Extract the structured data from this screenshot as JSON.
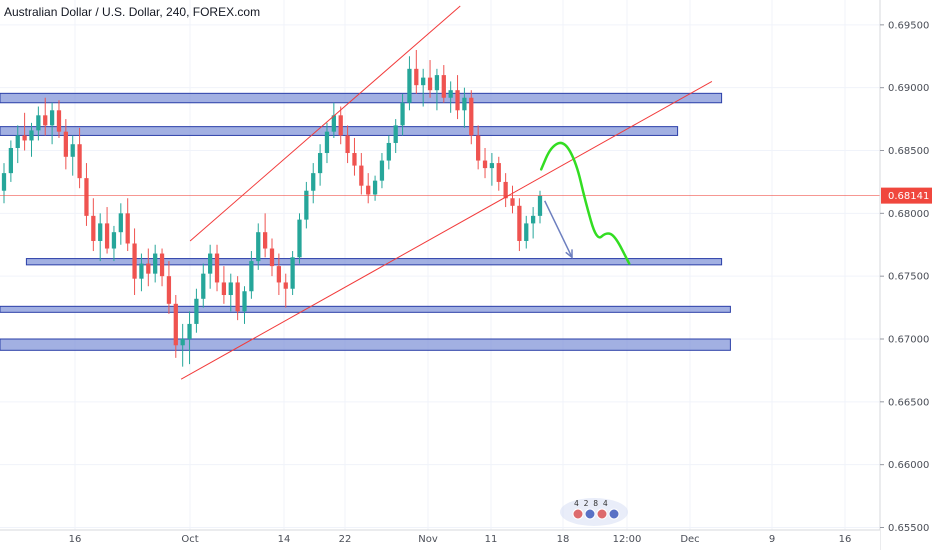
{
  "chart_data": {
    "type": "candlestick",
    "title": "Australian Dollar / U.S. Dollar, 240, FOREX.com",
    "symbol": "AUDUSD",
    "timeframe": "240",
    "source": "FOREX.com",
    "ylim": [
      0.6548,
      0.6965
    ],
    "y_ticks": [
      "0.69500",
      "0.69000",
      "0.68500",
      "0.68000",
      "0.67500",
      "0.67000",
      "0.66500",
      "0.66000",
      "0.65500"
    ],
    "x_ticks": [
      "16",
      "Oct",
      "14",
      "22",
      "Nov",
      "11",
      "18",
      "12:00",
      "Dec",
      "9",
      "16"
    ],
    "current_price": "0.68141",
    "colors": {
      "up": "#26a69a",
      "down": "#ef5350",
      "zone_fill": "#7b8fd6",
      "zone_stroke": "#2b3fa8",
      "trendline": "#f23c3c",
      "forecast": "#33dd22",
      "arrow": "#6d7fbf",
      "price_tag": "#f0473d"
    },
    "candles": [
      {
        "o": 0.6818,
        "h": 0.684,
        "l": 0.6808,
        "c": 0.6832
      },
      {
        "o": 0.6832,
        "h": 0.6858,
        "l": 0.6825,
        "c": 0.6852
      },
      {
        "o": 0.6852,
        "h": 0.687,
        "l": 0.684,
        "c": 0.6862
      },
      {
        "o": 0.6862,
        "h": 0.688,
        "l": 0.685,
        "c": 0.6858
      },
      {
        "o": 0.6858,
        "h": 0.6872,
        "l": 0.6845,
        "c": 0.6866
      },
      {
        "o": 0.6866,
        "h": 0.6885,
        "l": 0.6858,
        "c": 0.6878
      },
      {
        "o": 0.6878,
        "h": 0.6892,
        "l": 0.6862,
        "c": 0.687
      },
      {
        "o": 0.687,
        "h": 0.6888,
        "l": 0.6855,
        "c": 0.6882
      },
      {
        "o": 0.6882,
        "h": 0.689,
        "l": 0.686,
        "c": 0.6865
      },
      {
        "o": 0.6865,
        "h": 0.6875,
        "l": 0.6835,
        "c": 0.6845
      },
      {
        "o": 0.6845,
        "h": 0.6862,
        "l": 0.683,
        "c": 0.6855
      },
      {
        "o": 0.6855,
        "h": 0.6868,
        "l": 0.682,
        "c": 0.6828
      },
      {
        "o": 0.6828,
        "h": 0.684,
        "l": 0.679,
        "c": 0.6798
      },
      {
        "o": 0.6798,
        "h": 0.6812,
        "l": 0.677,
        "c": 0.6778
      },
      {
        "o": 0.6778,
        "h": 0.68,
        "l": 0.6762,
        "c": 0.6792
      },
      {
        "o": 0.6792,
        "h": 0.6805,
        "l": 0.6768,
        "c": 0.6772
      },
      {
        "o": 0.6772,
        "h": 0.679,
        "l": 0.6762,
        "c": 0.6785
      },
      {
        "o": 0.6785,
        "h": 0.6808,
        "l": 0.6775,
        "c": 0.68
      },
      {
        "o": 0.68,
        "h": 0.6812,
        "l": 0.677,
        "c": 0.6776
      },
      {
        "o": 0.6776,
        "h": 0.6788,
        "l": 0.6735,
        "c": 0.6748
      },
      {
        "o": 0.6748,
        "h": 0.6768,
        "l": 0.6738,
        "c": 0.676
      },
      {
        "o": 0.676,
        "h": 0.6772,
        "l": 0.6742,
        "c": 0.6752
      },
      {
        "o": 0.6752,
        "h": 0.6775,
        "l": 0.6745,
        "c": 0.6768
      },
      {
        "o": 0.6768,
        "h": 0.6772,
        "l": 0.6742,
        "c": 0.675
      },
      {
        "o": 0.675,
        "h": 0.6762,
        "l": 0.672,
        "c": 0.6728
      },
      {
        "o": 0.6728,
        "h": 0.6735,
        "l": 0.6685,
        "c": 0.6695
      },
      {
        "o": 0.6695,
        "h": 0.6712,
        "l": 0.6678,
        "c": 0.67
      },
      {
        "o": 0.67,
        "h": 0.6722,
        "l": 0.668,
        "c": 0.6712
      },
      {
        "o": 0.6712,
        "h": 0.674,
        "l": 0.6705,
        "c": 0.6732
      },
      {
        "o": 0.6732,
        "h": 0.676,
        "l": 0.6725,
        "c": 0.6752
      },
      {
        "o": 0.6752,
        "h": 0.6775,
        "l": 0.674,
        "c": 0.6768
      },
      {
        "o": 0.6768,
        "h": 0.6775,
        "l": 0.6738,
        "c": 0.6745
      },
      {
        "o": 0.6745,
        "h": 0.6758,
        "l": 0.6728,
        "c": 0.6735
      },
      {
        "o": 0.6735,
        "h": 0.6752,
        "l": 0.6722,
        "c": 0.6745
      },
      {
        "o": 0.6745,
        "h": 0.675,
        "l": 0.6715,
        "c": 0.6722
      },
      {
        "o": 0.6722,
        "h": 0.6742,
        "l": 0.6712,
        "c": 0.6738
      },
      {
        "o": 0.6738,
        "h": 0.677,
        "l": 0.6732,
        "c": 0.6762
      },
      {
        "o": 0.6762,
        "h": 0.6792,
        "l": 0.6755,
        "c": 0.6785
      },
      {
        "o": 0.6785,
        "h": 0.68,
        "l": 0.6765,
        "c": 0.6772
      },
      {
        "o": 0.6772,
        "h": 0.678,
        "l": 0.675,
        "c": 0.6758
      },
      {
        "o": 0.6758,
        "h": 0.6768,
        "l": 0.6735,
        "c": 0.6745
      },
      {
        "o": 0.6745,
        "h": 0.6752,
        "l": 0.6725,
        "c": 0.674
      },
      {
        "o": 0.674,
        "h": 0.677,
        "l": 0.6735,
        "c": 0.6765
      },
      {
        "o": 0.6765,
        "h": 0.68,
        "l": 0.676,
        "c": 0.6795
      },
      {
        "o": 0.6795,
        "h": 0.6825,
        "l": 0.6788,
        "c": 0.6818
      },
      {
        "o": 0.6818,
        "h": 0.684,
        "l": 0.6808,
        "c": 0.6832
      },
      {
        "o": 0.6832,
        "h": 0.6855,
        "l": 0.6822,
        "c": 0.6848
      },
      {
        "o": 0.6848,
        "h": 0.6872,
        "l": 0.684,
        "c": 0.6865
      },
      {
        "o": 0.6865,
        "h": 0.6888,
        "l": 0.686,
        "c": 0.6878
      },
      {
        "o": 0.6878,
        "h": 0.6885,
        "l": 0.6855,
        "c": 0.6862
      },
      {
        "o": 0.6862,
        "h": 0.687,
        "l": 0.684,
        "c": 0.6848
      },
      {
        "o": 0.6848,
        "h": 0.686,
        "l": 0.683,
        "c": 0.6838
      },
      {
        "o": 0.6838,
        "h": 0.6848,
        "l": 0.6815,
        "c": 0.6822
      },
      {
        "o": 0.6822,
        "h": 0.6832,
        "l": 0.6808,
        "c": 0.6815
      },
      {
        "o": 0.6815,
        "h": 0.683,
        "l": 0.681,
        "c": 0.6826
      },
      {
        "o": 0.6826,
        "h": 0.6848,
        "l": 0.682,
        "c": 0.6842
      },
      {
        "o": 0.6842,
        "h": 0.6862,
        "l": 0.6835,
        "c": 0.6856
      },
      {
        "o": 0.6856,
        "h": 0.6875,
        "l": 0.6848,
        "c": 0.687
      },
      {
        "o": 0.687,
        "h": 0.6895,
        "l": 0.6862,
        "c": 0.6888
      },
      {
        "o": 0.6888,
        "h": 0.6925,
        "l": 0.6882,
        "c": 0.6915
      },
      {
        "o": 0.6915,
        "h": 0.693,
        "l": 0.6895,
        "c": 0.6902
      },
      {
        "o": 0.6902,
        "h": 0.6915,
        "l": 0.6885,
        "c": 0.6908
      },
      {
        "o": 0.6908,
        "h": 0.6922,
        "l": 0.6892,
        "c": 0.6898
      },
      {
        "o": 0.6898,
        "h": 0.6915,
        "l": 0.6882,
        "c": 0.691
      },
      {
        "o": 0.691,
        "h": 0.6918,
        "l": 0.6888,
        "c": 0.6892
      },
      {
        "o": 0.6892,
        "h": 0.6905,
        "l": 0.688,
        "c": 0.6898
      },
      {
        "o": 0.6898,
        "h": 0.691,
        "l": 0.6875,
        "c": 0.6882
      },
      {
        "o": 0.6882,
        "h": 0.69,
        "l": 0.6868,
        "c": 0.6892
      },
      {
        "o": 0.6892,
        "h": 0.6898,
        "l": 0.6855,
        "c": 0.6862
      },
      {
        "o": 0.6862,
        "h": 0.687,
        "l": 0.6835,
        "c": 0.6842
      },
      {
        "o": 0.6842,
        "h": 0.6852,
        "l": 0.6828,
        "c": 0.6836
      },
      {
        "o": 0.6836,
        "h": 0.6848,
        "l": 0.6822,
        "c": 0.684
      },
      {
        "o": 0.684,
        "h": 0.6845,
        "l": 0.6818,
        "c": 0.6825
      },
      {
        "o": 0.6825,
        "h": 0.6832,
        "l": 0.6805,
        "c": 0.6812
      },
      {
        "o": 0.6812,
        "h": 0.6822,
        "l": 0.68,
        "c": 0.6806
      },
      {
        "o": 0.6806,
        "h": 0.6812,
        "l": 0.677,
        "c": 0.6778
      },
      {
        "o": 0.6778,
        "h": 0.6798,
        "l": 0.6772,
        "c": 0.6792
      },
      {
        "o": 0.6792,
        "h": 0.6805,
        "l": 0.678,
        "c": 0.6798
      },
      {
        "o": 0.6798,
        "h": 0.6818,
        "l": 0.6792,
        "c": 0.6814
      }
    ],
    "horizontal_zones": [
      {
        "top": 0.68955,
        "bottom": 0.6888,
        "x_start_frac": 0.0,
        "x_end_frac": 0.82
      },
      {
        "top": 0.6869,
        "bottom": 0.6862,
        "x_start_frac": 0.0,
        "x_end_frac": 0.77
      },
      {
        "top": 0.6764,
        "bottom": 0.6759,
        "x_start_frac": 0.03,
        "x_end_frac": 0.82
      },
      {
        "top": 0.6726,
        "bottom": 0.6722,
        "x_start_frac": 0.0,
        "x_end_frac": 0.83
      },
      {
        "top": 0.67,
        "bottom": 0.6691,
        "x_start_frac": 0.0,
        "x_end_frac": 0.83
      }
    ],
    "trendlines": [
      {
        "from": [
          0.2058,
          0.6668
        ],
        "to": [
          0.809,
          0.6905
        ]
      },
      {
        "from": [
          0.216,
          0.6778
        ],
        "to": [
          0.523,
          0.6965
        ]
      }
    ],
    "annotations": [
      {
        "type": "arrow",
        "from": [
          0.619,
          0.681
        ],
        "to": [
          0.65,
          0.6765
        ]
      },
      {
        "type": "forecast_path",
        "points": [
          [
            0.615,
            0.6835
          ],
          [
            0.626,
            0.6853
          ],
          [
            0.641,
            0.6858
          ],
          [
            0.655,
            0.684
          ],
          [
            0.665,
            0.681
          ],
          [
            0.678,
            0.6778
          ],
          [
            0.689,
            0.6785
          ],
          [
            0.699,
            0.6782
          ],
          [
            0.715,
            0.676
          ]
        ]
      }
    ],
    "horizontal_line": {
      "value": 0.68141
    },
    "event_badges": {
      "text": "4 2 8 4"
    }
  }
}
